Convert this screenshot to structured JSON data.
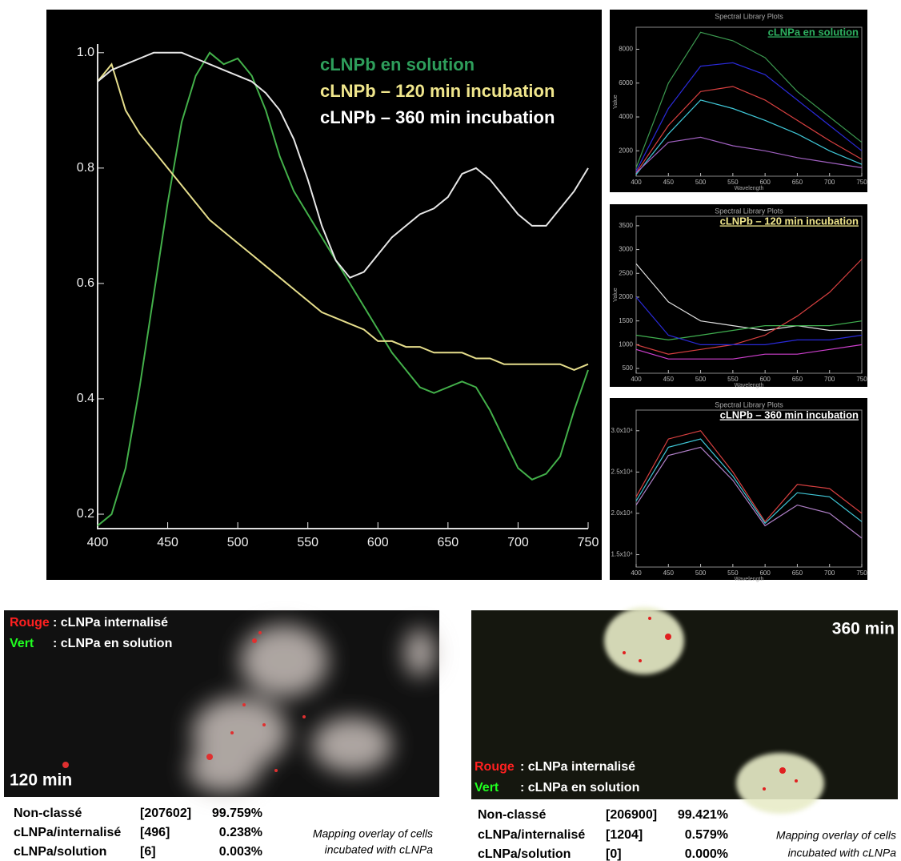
{
  "chart_data": [
    {
      "type": "line",
      "x": [
        400,
        410,
        420,
        430,
        440,
        450,
        460,
        470,
        480,
        490,
        500,
        510,
        520,
        530,
        540,
        550,
        560,
        570,
        580,
        590,
        600,
        610,
        620,
        630,
        640,
        650,
        660,
        670,
        680,
        690,
        700,
        710,
        720,
        730,
        740,
        750
      ],
      "series": [
        {
          "name": "cLNPb en solution",
          "color": "#43b04a",
          "label_color": "#2e9e5b",
          "values": [
            0.18,
            0.2,
            0.28,
            0.42,
            0.58,
            0.74,
            0.88,
            0.96,
            1.0,
            0.98,
            0.99,
            0.96,
            0.9,
            0.82,
            0.76,
            0.72,
            0.68,
            0.64,
            0.6,
            0.56,
            0.52,
            0.48,
            0.45,
            0.42,
            0.41,
            0.42,
            0.43,
            0.42,
            0.38,
            0.33,
            0.28,
            0.26,
            0.27,
            0.3,
            0.38,
            0.45
          ]
        },
        {
          "name": "cLNPb – 120 min incubation",
          "color": "#e6de8c",
          "label_color": "#f0e68c",
          "values": [
            0.95,
            0.98,
            0.9,
            0.86,
            0.83,
            0.8,
            0.77,
            0.74,
            0.71,
            0.69,
            0.67,
            0.65,
            0.63,
            0.61,
            0.59,
            0.57,
            0.55,
            0.54,
            0.53,
            0.52,
            0.5,
            0.5,
            0.49,
            0.49,
            0.48,
            0.48,
            0.48,
            0.47,
            0.47,
            0.46,
            0.46,
            0.46,
            0.46,
            0.46,
            0.45,
            0.46
          ]
        },
        {
          "name": "cLNPb – 360 min incubation",
          "color": "#e6e6e6",
          "label_color": "#ffffff",
          "values": [
            0.95,
            0.97,
            0.98,
            0.99,
            1.0,
            1.0,
            1.0,
            0.99,
            0.98,
            0.97,
            0.96,
            0.95,
            0.93,
            0.9,
            0.85,
            0.78,
            0.7,
            0.64,
            0.61,
            0.62,
            0.65,
            0.68,
            0.7,
            0.72,
            0.73,
            0.75,
            0.79,
            0.8,
            0.78,
            0.75,
            0.72,
            0.7,
            0.7,
            0.73,
            0.76,
            0.8
          ]
        }
      ],
      "xlim": [
        400,
        750
      ],
      "xticks": [
        400,
        450,
        500,
        550,
        600,
        650,
        700,
        750
      ],
      "ylim": [
        0.175,
        1.015
      ],
      "yticks": [
        0.2,
        0.4,
        0.6,
        0.8,
        {
          "value": 1,
          "label": "1.0"
        }
      ]
    },
    {
      "type": "line",
      "title": "Spectral Library Plots",
      "x_label": "Wavelength",
      "y_label": "Value",
      "annotation": "cLNPa en solution",
      "annotation_color": "#2eb060",
      "x": [
        400,
        450,
        500,
        550,
        600,
        650,
        700,
        750
      ],
      "series": [
        {
          "color": "#3c9a50",
          "values": [
            1000,
            6000,
            9000,
            8500,
            7500,
            5500,
            4000,
            2500
          ]
        },
        {
          "color": "#2a2ad8",
          "values": [
            800,
            4500,
            7000,
            7200,
            6500,
            5000,
            3500,
            2000
          ]
        },
        {
          "color": "#d84040",
          "values": [
            700,
            3500,
            5500,
            5800,
            5000,
            3800,
            2600,
            1500
          ]
        },
        {
          "color": "#40c8d8",
          "values": [
            600,
            3000,
            5000,
            4500,
            3800,
            3000,
            2000,
            1200
          ]
        },
        {
          "color": "#a060c0",
          "values": [
            700,
            2500,
            2800,
            2300,
            2000,
            1600,
            1300,
            1000
          ]
        }
      ],
      "xlim": [
        400,
        750
      ],
      "xticks": [
        400,
        450,
        500,
        550,
        600,
        650,
        700,
        750
      ],
      "ylim": [
        500,
        9300
      ],
      "yticks": [
        2000,
        4000,
        6000,
        8000
      ]
    },
    {
      "type": "line",
      "title": "Spectral Library Plots",
      "x_label": "Wavelength",
      "y_label": "Value",
      "annotation": "cLNPb – 120 min incubation",
      "annotation_color": "#f0e68c",
      "x": [
        400,
        450,
        500,
        550,
        600,
        650,
        700,
        750
      ],
      "series": [
        {
          "color": "#e0e0e0",
          "values": [
            2700,
            1900,
            1500,
            1400,
            1300,
            1400,
            1300,
            1300
          ]
        },
        {
          "color": "#d84040",
          "values": [
            1000,
            800,
            900,
            1000,
            1200,
            1600,
            2100,
            2800
          ]
        },
        {
          "color": "#40b050",
          "values": [
            1200,
            1100,
            1200,
            1300,
            1400,
            1400,
            1400,
            1500
          ]
        },
        {
          "color": "#2a2ad8",
          "values": [
            2000,
            1200,
            1000,
            1000,
            1000,
            1100,
            1100,
            1200
          ]
        },
        {
          "color": "#d040d0",
          "values": [
            900,
            700,
            700,
            700,
            800,
            800,
            900,
            1000
          ]
        }
      ],
      "xlim": [
        400,
        750
      ],
      "xticks": [
        400,
        450,
        500,
        550,
        600,
        650,
        700,
        750
      ],
      "ylim": [
        400,
        3700
      ],
      "yticks": [
        500,
        1000,
        1500,
        2000,
        2500,
        3000,
        3500
      ]
    },
    {
      "type": "line",
      "title": "Spectral Library Plots",
      "x_label": "Wavelength",
      "annotation": "cLNPb – 360 min incubation",
      "annotation_color": "#ffffff",
      "x": [
        400,
        450,
        500,
        550,
        600,
        650,
        700,
        750
      ],
      "series": [
        {
          "color": "#d84040",
          "values": [
            22000,
            29000,
            30000,
            25000,
            19000,
            23500,
            23000,
            20000
          ]
        },
        {
          "color": "#40c8d8",
          "values": [
            21500,
            28000,
            29000,
            24500,
            18800,
            22500,
            22000,
            19000
          ]
        },
        {
          "color": "#b080c8",
          "values": [
            21000,
            27000,
            28000,
            24000,
            18500,
            21000,
            20000,
            17000
          ]
        }
      ],
      "xlim": [
        400,
        750
      ],
      "xticks": [
        400,
        450,
        500,
        550,
        600,
        650,
        700,
        750
      ],
      "ylim": [
        13500,
        32500
      ],
      "yticks": [
        {
          "value": 15000,
          "label": "1.5x10⁴"
        },
        {
          "value": 20000,
          "label": "2.0x10⁴"
        },
        {
          "value": 25000,
          "label": "2.5x10⁴"
        },
        {
          "value": 30000,
          "label": "3.0x10⁴"
        }
      ]
    }
  ],
  "panels": [
    {
      "time_label": "120 min",
      "legend": [
        {
          "key": "Rouge",
          "text": ": cLNPa internalisé"
        },
        {
          "key": "Vert",
          "text": ": cLNPa en solution"
        }
      ],
      "table": [
        [
          "Non-classé",
          "[207602]",
          "99.759%"
        ],
        [
          "cLNPa/internalisé",
          "[496]",
          "0.238%"
        ],
        [
          "cLNPa/solution",
          "[6]",
          "0.003%"
        ]
      ],
      "caption": [
        "Mapping overlay of cells",
        "incubated with cLNPa"
      ]
    },
    {
      "time_label": "360 min",
      "legend": [
        {
          "key": "Rouge",
          "text": ": cLNPa internalisé"
        },
        {
          "key": "Vert",
          "text": ": cLNPa en solution"
        }
      ],
      "table": [
        [
          "Non-classé",
          "[206900]",
          "99.421%"
        ],
        [
          "cLNPa/internalisé",
          "[1204]",
          "0.579%"
        ],
        [
          "cLNPa/solution",
          "[0]",
          "0.000%"
        ]
      ],
      "caption": [
        "Mapping overlay of cells",
        "incubated with cLNPa"
      ]
    }
  ]
}
